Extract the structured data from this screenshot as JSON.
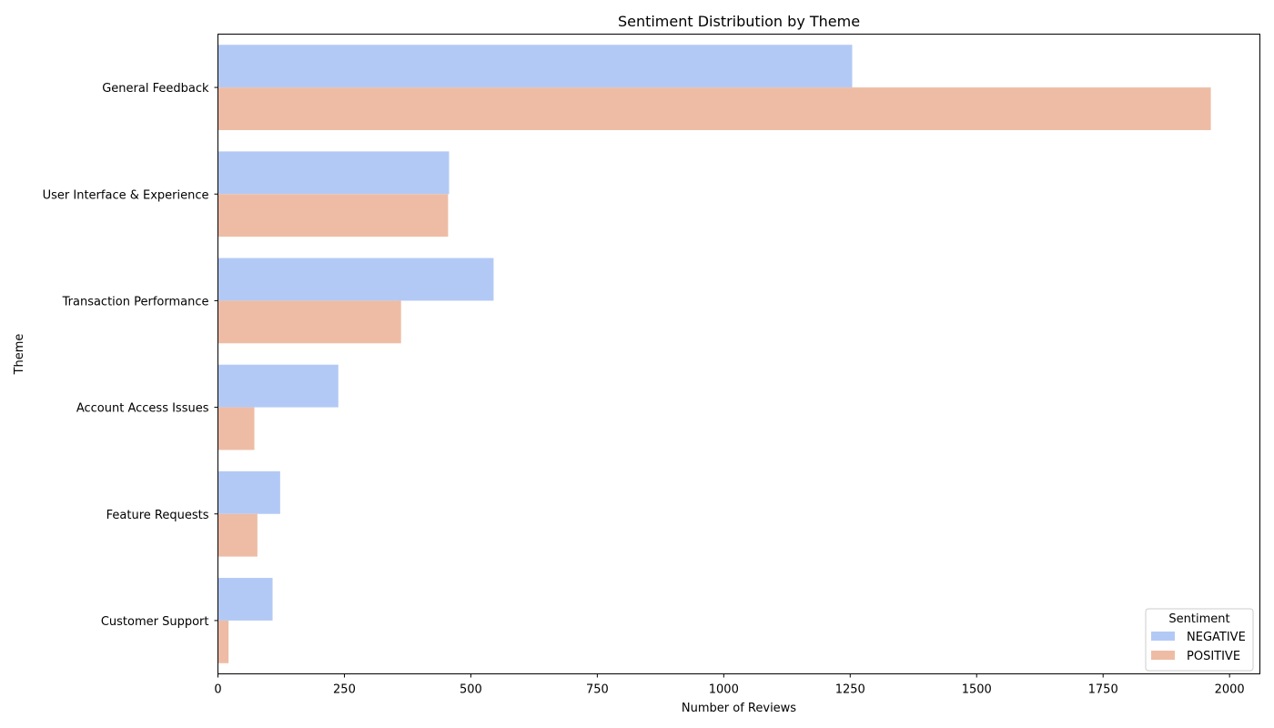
{
  "chart_data": {
    "type": "bar",
    "orientation": "horizontal",
    "title": "Sentiment Distribution by Theme",
    "xlabel": "Number of Reviews",
    "ylabel": "Theme",
    "xlim": [
      0,
      2060
    ],
    "xticks": [
      0,
      250,
      500,
      750,
      1000,
      1250,
      1500,
      1750,
      2000
    ],
    "categories": [
      "General Feedback",
      "User Interface & Experience",
      "Transaction Performance",
      "Account Access Issues",
      "Feature Requests",
      "Customer Support"
    ],
    "series": [
      {
        "name": "NEGATIVE",
        "color": "#b3c9f5",
        "values": [
          1254,
          457,
          545,
          238,
          123,
          108
        ]
      },
      {
        "name": "POSITIVE",
        "color": "#eebca5",
        "values": [
          1963,
          455,
          362,
          72,
          78,
          21
        ]
      }
    ],
    "legend": {
      "title": "Sentiment",
      "position": "lower-right"
    },
    "grid": false
  }
}
